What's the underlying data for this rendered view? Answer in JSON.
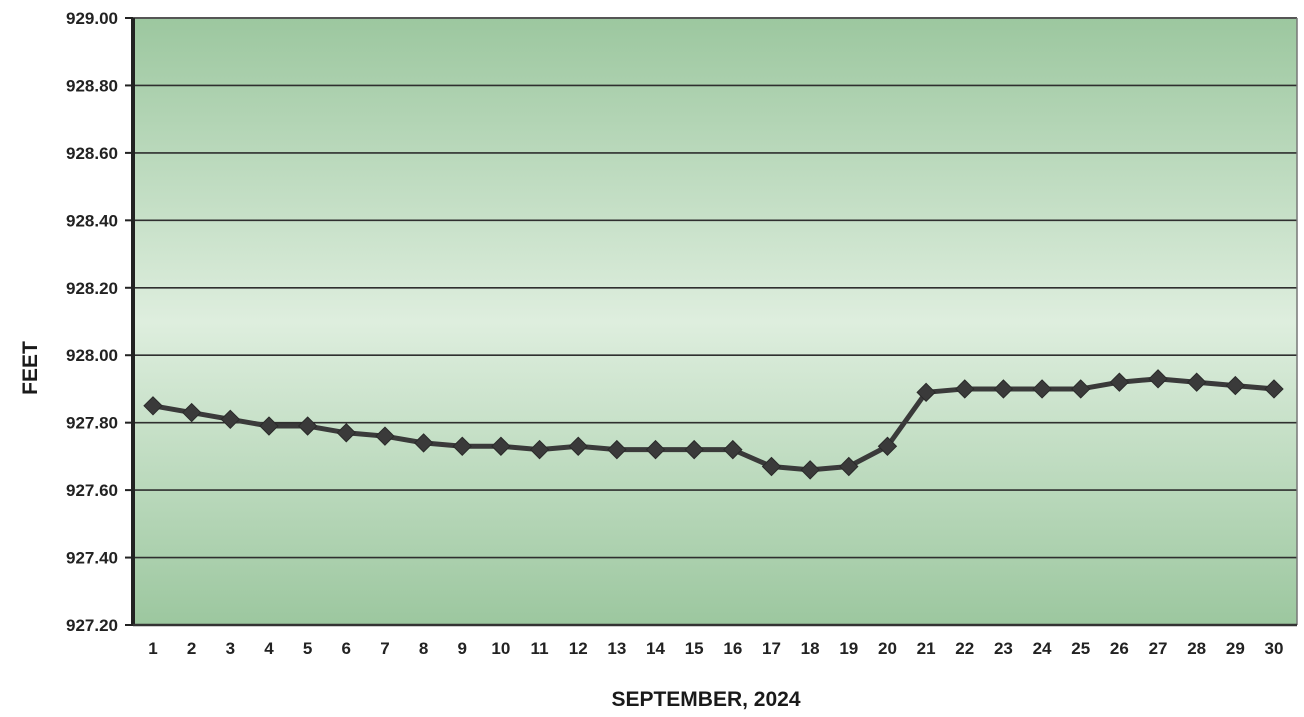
{
  "chart_data": {
    "type": "line",
    "title": "",
    "xlabel": "SEPTEMBER, 2024",
    "ylabel": "FEET",
    "categories": [
      "1",
      "2",
      "3",
      "4",
      "5",
      "6",
      "7",
      "8",
      "9",
      "10",
      "11",
      "12",
      "13",
      "14",
      "15",
      "16",
      "17",
      "18",
      "19",
      "20",
      "21",
      "22",
      "23",
      "24",
      "25",
      "26",
      "27",
      "28",
      "29",
      "30"
    ],
    "series": [
      {
        "values": [
          927.85,
          927.83,
          927.81,
          927.79,
          927.79,
          927.77,
          927.76,
          927.74,
          927.73,
          927.73,
          927.72,
          927.73,
          927.72,
          927.72,
          927.72,
          927.72,
          927.67,
          927.66,
          927.67,
          927.73,
          927.89,
          927.9,
          927.9,
          927.9,
          927.9,
          927.92,
          927.93,
          927.92,
          927.91,
          927.9
        ],
        "color": "#3a3a3a",
        "marker": "diamond"
      }
    ],
    "ylim": [
      927.2,
      929.0
    ],
    "yticks": [
      "927.20",
      "927.40",
      "927.60",
      "927.80",
      "928.00",
      "928.20",
      "928.40",
      "928.60",
      "928.80",
      "929.00"
    ],
    "grid": true,
    "legend": "none",
    "colors": {
      "plot_top": "#9cc79f",
      "plot_middle": "#deeede",
      "plot_bottom": "#9cc79f",
      "gridline": "#2f2f2f",
      "line": "#3a3a3a"
    }
  }
}
